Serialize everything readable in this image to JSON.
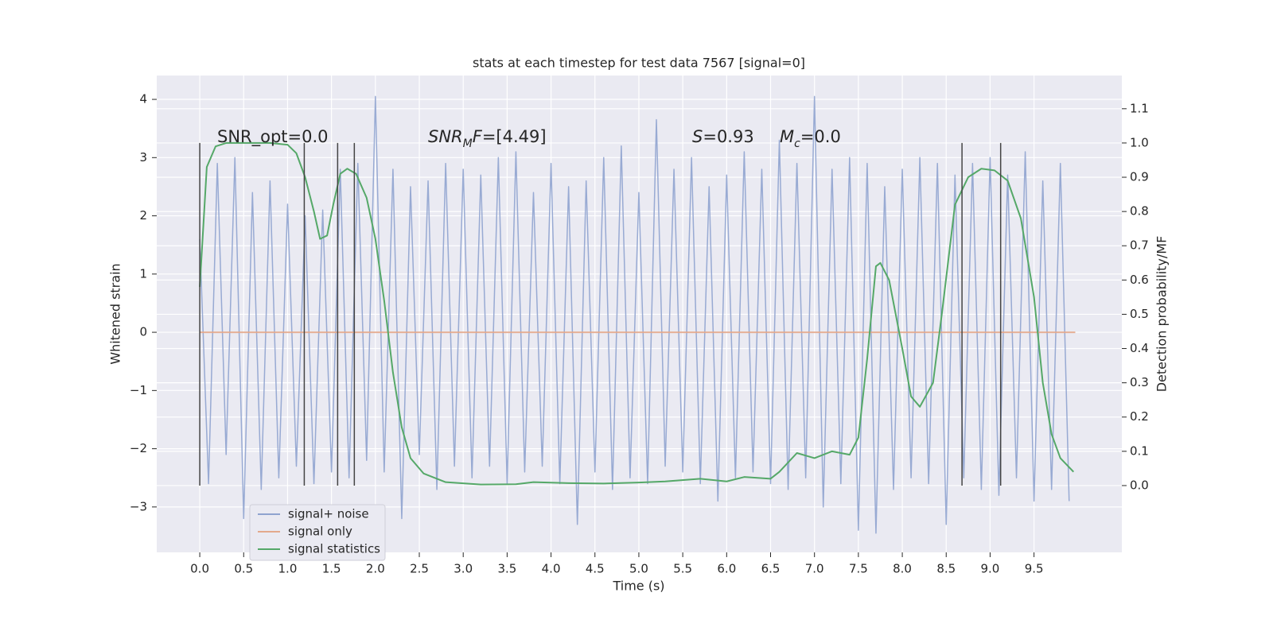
{
  "chart_data": {
    "type": "line",
    "title": "stats at each timestep for test data 7567 [signal=0]",
    "xlabel": "Time (s)",
    "ylabel": "Whitened strain",
    "y2label": "Detection probability/MF",
    "xlim": [
      -0.49,
      10.5
    ],
    "ylim": [
      -3.78,
      4.41
    ],
    "y2lim": [
      -0.195,
      1.197
    ],
    "xticks": [
      {
        "value": 0,
        "label": "0.0"
      },
      0.5,
      {
        "value": 1,
        "label": "1.0"
      },
      1.5,
      {
        "value": 2,
        "label": "2.0"
      },
      2.5,
      {
        "value": 3,
        "label": "3.0"
      },
      3.5,
      {
        "value": 4,
        "label": "4.0"
      },
      4.5,
      {
        "value": 5,
        "label": "5.0"
      },
      5.5,
      {
        "value": 6,
        "label": "6.0"
      },
      6.5,
      {
        "value": 7,
        "label": "7.0"
      },
      7.5,
      {
        "value": 8,
        "label": "8.0"
      },
      8.5,
      {
        "value": 9,
        "label": "9.0"
      },
      9.5
    ],
    "yticks": [
      {
        "value": -3,
        "label": "−3"
      },
      {
        "value": -2,
        "label": "−2"
      },
      {
        "value": -1,
        "label": "−1"
      },
      0,
      1,
      2,
      3,
      4
    ],
    "y2ticks": [
      {
        "value": 0,
        "label": "0.0"
      },
      0.1,
      0.2,
      0.3,
      0.4,
      0.5,
      0.6,
      0.7,
      0.8,
      0.9,
      {
        "value": 1,
        "label": "1.0"
      },
      1.1
    ],
    "grid": true,
    "legend": "lower left",
    "series": [
      {
        "name": "signal+ noise",
        "color": "#8fa3cf",
        "x": [
          0.0,
          0.1,
          0.2,
          0.3,
          0.4,
          0.5,
          0.6,
          0.7,
          0.8,
          0.9,
          1.0,
          1.1,
          1.2,
          1.3,
          1.4,
          1.5,
          1.6,
          1.7,
          1.8,
          1.9,
          2.0,
          2.1,
          2.2,
          2.3,
          2.4,
          2.5,
          2.6,
          2.7,
          2.8,
          2.9,
          3.0,
          3.1,
          3.2,
          3.3,
          3.4,
          3.5,
          3.6,
          3.7,
          3.8,
          3.9,
          4.0,
          4.1,
          4.2,
          4.3,
          4.4,
          4.5,
          4.6,
          4.7,
          4.8,
          4.9,
          5.0,
          5.1,
          5.2,
          5.3,
          5.4,
          5.5,
          5.6,
          5.7,
          5.8,
          5.9,
          6.0,
          6.1,
          6.2,
          6.3,
          6.4,
          6.5,
          6.6,
          6.7,
          6.8,
          6.9,
          7.0,
          7.1,
          7.2,
          7.3,
          7.4,
          7.5,
          7.6,
          7.7,
          7.8,
          7.9,
          8.0,
          8.1,
          8.2,
          8.3,
          8.4,
          8.5,
          8.6,
          8.7,
          8.8,
          8.9,
          9.0,
          9.1,
          9.2,
          9.3,
          9.4,
          9.5,
          9.6,
          9.7,
          9.8,
          9.9
        ],
        "values": [
          1.6,
          -2.6,
          2.9,
          -2.1,
          3.0,
          -3.2,
          2.4,
          -2.7,
          2.6,
          -2.5,
          2.2,
          -2.3,
          2.0,
          -2.6,
          2.1,
          -2.4,
          2.8,
          -2.5,
          2.9,
          -2.2,
          4.05,
          -2.4,
          2.8,
          -3.2,
          2.5,
          -2.1,
          2.6,
          -2.7,
          2.9,
          -2.3,
          2.8,
          -2.5,
          2.7,
          -2.3,
          3.0,
          -2.6,
          3.1,
          -2.4,
          2.4,
          -2.3,
          2.9,
          -2.6,
          2.5,
          -3.3,
          2.6,
          -2.4,
          3.0,
          -2.7,
          3.2,
          -2.5,
          2.4,
          -2.6,
          3.65,
          -2.3,
          2.8,
          -2.4,
          3.0,
          -2.6,
          2.5,
          -2.9,
          2.7,
          -2.5,
          3.1,
          -2.4,
          2.8,
          -2.6,
          3.3,
          -2.7,
          2.9,
          -2.5,
          4.05,
          -3.0,
          2.8,
          -2.6,
          3.0,
          -3.4,
          2.9,
          -3.45,
          2.5,
          -2.7,
          2.8,
          -2.5,
          3.0,
          -2.6,
          2.9,
          -3.3,
          2.7,
          -2.5,
          2.9,
          -2.7,
          3.0,
          -2.8,
          2.7,
          -2.5,
          3.1,
          -2.9,
          2.6,
          -2.7,
          2.9,
          -2.9
        ]
      },
      {
        "name": "signal only",
        "color": "#e3a98c",
        "x": [
          0.0,
          9.97
        ],
        "values": [
          0,
          0
        ]
      },
      {
        "name": "signal statistics",
        "color": "#55a868",
        "axis": "y2",
        "x": [
          0.0,
          0.08,
          0.18,
          0.3,
          0.5,
          0.8,
          1.0,
          1.1,
          1.2,
          1.3,
          1.37,
          1.45,
          1.52,
          1.6,
          1.68,
          1.78,
          1.9,
          2.0,
          2.1,
          2.2,
          2.3,
          2.4,
          2.55,
          2.8,
          3.2,
          3.6,
          3.8,
          4.2,
          4.6,
          5.0,
          5.3,
          5.7,
          6.0,
          6.2,
          6.5,
          6.6,
          6.8,
          7.0,
          7.2,
          7.4,
          7.5,
          7.6,
          7.7,
          7.75,
          7.85,
          8.0,
          8.1,
          8.2,
          8.35,
          8.45,
          8.6,
          8.75,
          8.9,
          9.05,
          9.2,
          9.35,
          9.5,
          9.6,
          9.7,
          9.8,
          9.95
        ],
        "values": [
          0.58,
          0.93,
          0.99,
          1.0,
          1.0,
          1.0,
          0.995,
          0.97,
          0.9,
          0.8,
          0.72,
          0.73,
          0.82,
          0.91,
          0.925,
          0.91,
          0.84,
          0.72,
          0.54,
          0.33,
          0.17,
          0.08,
          0.035,
          0.01,
          0.003,
          0.004,
          0.01,
          0.007,
          0.006,
          0.009,
          0.012,
          0.02,
          0.012,
          0.025,
          0.02,
          0.04,
          0.095,
          0.08,
          0.1,
          0.09,
          0.14,
          0.37,
          0.64,
          0.65,
          0.6,
          0.4,
          0.26,
          0.23,
          0.3,
          0.5,
          0.82,
          0.9,
          0.925,
          0.92,
          0.89,
          0.78,
          0.55,
          0.3,
          0.15,
          0.08,
          0.04
        ]
      }
    ],
    "vlines": [
      0.0,
      1.19,
      1.57,
      1.76,
      8.68,
      9.12
    ],
    "annotations": [
      [
        {
          "text": "SNR_opt=0.0",
          "style": "normal"
        }
      ],
      [
        {
          "text": "SNR",
          "style": "italic"
        },
        {
          "text": "M",
          "style": "sub"
        },
        {
          "text": "F",
          "style": "italic"
        },
        {
          "text": "=[4.49]",
          "style": "normal"
        }
      ],
      [
        {
          "text": "S",
          "style": "italic"
        },
        {
          "text": "=0.93",
          "style": "normal"
        }
      ],
      [
        {
          "text": "M",
          "style": "italic"
        },
        {
          "text": "c",
          "style": "sub"
        },
        {
          "text": "=0.0",
          "style": "normal"
        }
      ]
    ]
  }
}
